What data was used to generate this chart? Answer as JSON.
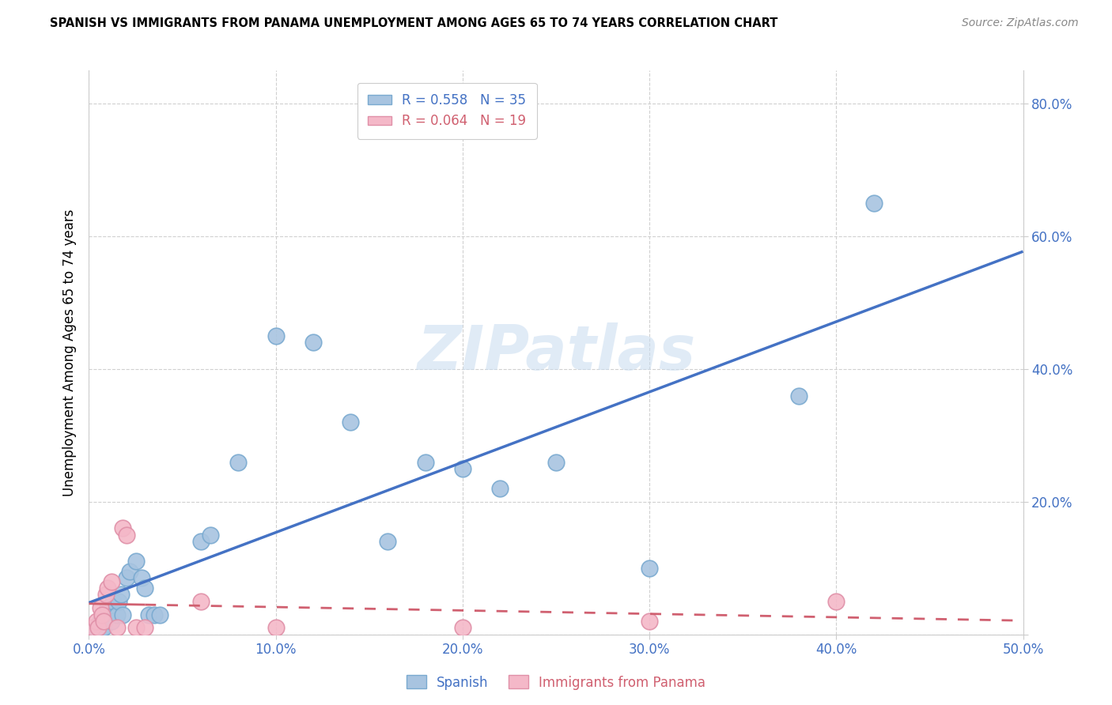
{
  "title": "SPANISH VS IMMIGRANTS FROM PANAMA UNEMPLOYMENT AMONG AGES 65 TO 74 YEARS CORRELATION CHART",
  "source": "Source: ZipAtlas.com",
  "ylabel": "Unemployment Among Ages 65 to 74 years",
  "xlim": [
    0.0,
    0.5
  ],
  "ylim": [
    0.0,
    0.85
  ],
  "xticks": [
    0.0,
    0.1,
    0.2,
    0.3,
    0.4,
    0.5
  ],
  "yticks": [
    0.0,
    0.2,
    0.4,
    0.6,
    0.8
  ],
  "xtick_labels": [
    "0.0%",
    "10.0%",
    "20.0%",
    "30.0%",
    "40.0%",
    "50.0%"
  ],
  "ytick_labels": [
    "",
    "20.0%",
    "40.0%",
    "60.0%",
    "80.0%"
  ],
  "spanish_color": "#a8c4e0",
  "panama_color": "#f4b8c8",
  "spanish_edge_color": "#7aaad0",
  "panama_edge_color": "#e090a8",
  "spanish_line_color": "#4472c4",
  "panama_line_color": "#d06070",
  "spanish_R": 0.558,
  "spanish_N": 35,
  "panama_R": 0.064,
  "panama_N": 19,
  "legend_label_spanish": "Spanish",
  "legend_label_panama": "Immigrants from Panama",
  "watermark": "ZIPatlas",
  "spanish_x": [
    0.003,
    0.005,
    0.006,
    0.007,
    0.008,
    0.009,
    0.01,
    0.012,
    0.013,
    0.015,
    0.016,
    0.017,
    0.018,
    0.02,
    0.022,
    0.025,
    0.028,
    0.03,
    0.032,
    0.035,
    0.038,
    0.06,
    0.065,
    0.08,
    0.1,
    0.12,
    0.14,
    0.16,
    0.18,
    0.2,
    0.22,
    0.25,
    0.3,
    0.38,
    0.42
  ],
  "spanish_y": [
    0.01,
    0.01,
    0.02,
    0.01,
    0.01,
    0.025,
    0.04,
    0.02,
    0.05,
    0.03,
    0.05,
    0.06,
    0.03,
    0.085,
    0.095,
    0.11,
    0.085,
    0.07,
    0.03,
    0.03,
    0.03,
    0.14,
    0.15,
    0.26,
    0.45,
    0.44,
    0.32,
    0.14,
    0.26,
    0.25,
    0.22,
    0.26,
    0.1,
    0.36,
    0.65
  ],
  "panama_x": [
    0.002,
    0.004,
    0.005,
    0.006,
    0.007,
    0.008,
    0.009,
    0.01,
    0.012,
    0.015,
    0.018,
    0.02,
    0.025,
    0.03,
    0.06,
    0.1,
    0.2,
    0.3,
    0.4
  ],
  "panama_y": [
    0.01,
    0.02,
    0.01,
    0.04,
    0.03,
    0.02,
    0.06,
    0.07,
    0.08,
    0.01,
    0.16,
    0.15,
    0.01,
    0.01,
    0.05,
    0.01,
    0.01,
    0.02,
    0.05
  ],
  "bg_color": "#ffffff",
  "grid_color": "#d0d0d0",
  "spine_color": "#cccccc"
}
